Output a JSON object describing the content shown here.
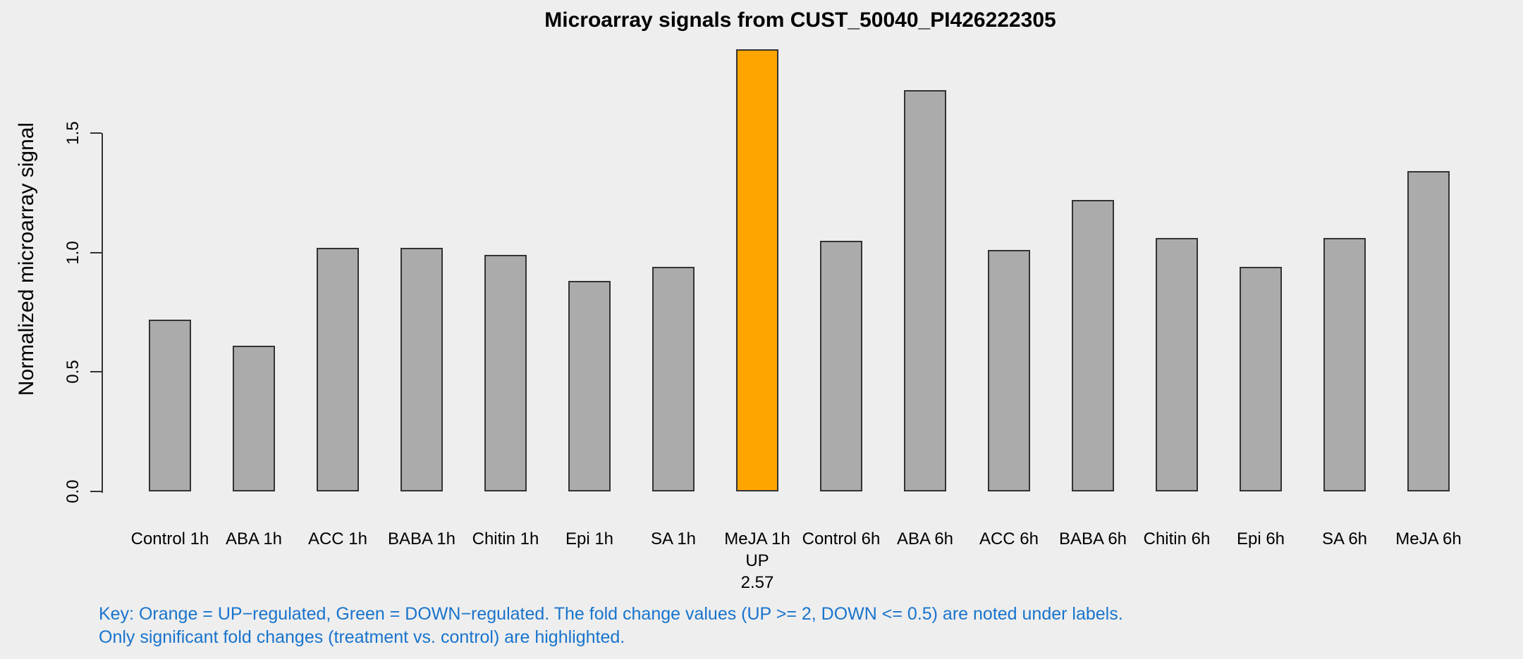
{
  "chart_data": {
    "type": "bar",
    "title": "Microarray signals from CUST_50040_PI426222305",
    "ylabel": "Normalized microarray signal",
    "xlabel": "",
    "ylim": [
      0,
      1.87
    ],
    "ytick_labels": [
      "0.0",
      "0.5",
      "1.0",
      "1.5"
    ],
    "grid": false,
    "legend": "none",
    "categories": [
      "Control 1h",
      "ABA 1h",
      "ACC 1h",
      "BABA 1h",
      "Chitin 1h",
      "Epi 1h",
      "SA 1h",
      "MeJA 1h",
      "Control 6h",
      "ABA 6h",
      "ACC 6h",
      "BABA 6h",
      "Chitin 6h",
      "Epi 6h",
      "SA 6h",
      "MeJA 6h"
    ],
    "values": [
      0.72,
      0.61,
      1.02,
      1.02,
      0.99,
      0.88,
      0.94,
      1.85,
      1.05,
      1.68,
      1.01,
      1.22,
      1.06,
      0.94,
      1.06,
      1.34
    ],
    "highlighted_bar": {
      "index": 7,
      "category": "MeJA 1h",
      "direction": "UP",
      "fold_change": "2.57"
    },
    "colors": {
      "bar_default": "#ABABAB",
      "bar_up_regulated": "#FFA500",
      "bar_border": "#333333",
      "key_text": "#1874CD",
      "background": "#EEEEEE",
      "text": "#000000"
    }
  },
  "key": {
    "line1": "Key: Orange = UP−regulated, Green = DOWN−regulated. The fold change values (UP >= 2, DOWN <= 0.5) are noted under labels.",
    "line2": "Only significant fold changes (treatment vs. control) are highlighted."
  }
}
